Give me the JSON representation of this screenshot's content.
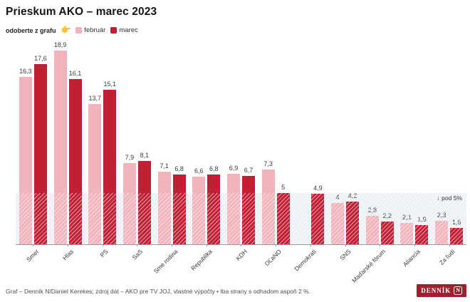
{
  "title": "Prieskum AKO – marec 2023",
  "subscribe": {
    "label": "odoberte z grafu",
    "pointer": "👉"
  },
  "threshold_label": "↓ pod 5%",
  "footer": {
    "credit": "Graf – Denník N/Daniel Kerekes; zdroj dát – AKO pre TV JOJ, vlastné výpočty • Iba strany s odhadom aspoň 2 %."
  },
  "logo": {
    "text": "DENNÍK",
    "n": "N"
  },
  "colors": {
    "february": "#f1b3bc",
    "march": "#c11f33",
    "zone": "#edf1f6",
    "logo": "#9e1f2d"
  },
  "chart_data": {
    "type": "bar",
    "title": "Prieskum AKO – marec 2023",
    "categories": [
      "Smer",
      "Hlas",
      "PS",
      "SaS",
      "Sme rodina",
      "Republika",
      "KDH",
      "OĽaNO",
      "Demokrati",
      "SNS",
      "Maďarské fórum",
      "Aliancia",
      "Za ľudí"
    ],
    "series": [
      {
        "name": "február",
        "color": "#f1b3bc",
        "values": [
          16.3,
          18.9,
          13.7,
          7.9,
          7.1,
          6.6,
          6.9,
          7.3,
          null,
          4,
          2.8,
          2.1,
          2.3
        ],
        "display_values": [
          "16,3",
          "18,9",
          "13,7",
          "7,9",
          "7,1",
          "6,6",
          "6,9",
          "7,3",
          "",
          "4",
          "2,8",
          "2,1",
          "2,3"
        ]
      },
      {
        "name": "marec",
        "color": "#c11f33",
        "values": [
          17.6,
          16.1,
          15.1,
          8.1,
          6.8,
          6.8,
          6.7,
          5,
          4.9,
          4.2,
          2.2,
          1.9,
          1.6
        ],
        "display_values": [
          "17,6",
          "16,1",
          "15,1",
          "8,1",
          "6,8",
          "6,8",
          "6,7",
          "5",
          "4,9",
          "4,2",
          "2,2",
          "1,9",
          "1,6"
        ]
      }
    ],
    "unit": "%",
    "ylim": [
      0,
      19.5
    ],
    "threshold": 5,
    "threshold_label": "↓ pod 5%",
    "grid": false,
    "legend_position": "top-left",
    "xlabel": "",
    "ylabel": ""
  }
}
